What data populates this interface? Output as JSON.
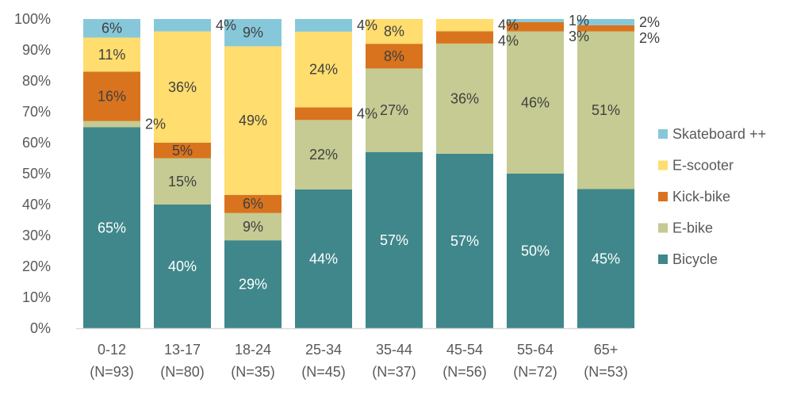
{
  "chart_data": {
    "type": "bar",
    "stacked": true,
    "percent_stacked": true,
    "title": "",
    "xlabel": "",
    "ylabel": "",
    "ylim": [
      0,
      100
    ],
    "y_ticks": [
      "0%",
      "10%",
      "20%",
      "30%",
      "40%",
      "50%",
      "60%",
      "70%",
      "80%",
      "90%",
      "100%"
    ],
    "grid": false,
    "legend_position": "right",
    "categories": [
      {
        "label": "0-12",
        "n": "(N=93)"
      },
      {
        "label": "13-17",
        "n": "(N=80)"
      },
      {
        "label": "18-24",
        "n": "(N=35)"
      },
      {
        "label": "25-34",
        "n": "(N=45)"
      },
      {
        "label": "35-44",
        "n": "(N=37)"
      },
      {
        "label": "45-54",
        "n": "(N=56)"
      },
      {
        "label": "55-64",
        "n": "(N=72)"
      },
      {
        "label": "65+",
        "n": "(N=53)"
      }
    ],
    "series": [
      {
        "name": "Bicycle",
        "color": "#3F878B",
        "label_color": "#FFFFFF",
        "values": [
          65,
          40,
          29,
          44,
          57,
          57,
          50,
          45
        ]
      },
      {
        "name": "E-bike",
        "color": "#C5CB92",
        "label_color": "#404040",
        "values": [
          2,
          15,
          9,
          22,
          27,
          36,
          46,
          51
        ]
      },
      {
        "name": "Kick-bike",
        "color": "#D9731E",
        "label_color": "#404040",
        "values": [
          16,
          5,
          6,
          4,
          8,
          4,
          3,
          2
        ]
      },
      {
        "name": "E-scooter",
        "color": "#FFDD6E",
        "label_color": "#404040",
        "values": [
          11,
          36,
          49,
          24,
          8,
          4,
          0,
          0
        ]
      },
      {
        "name": "Skateboard ++",
        "color": "#86C8DA",
        "label_color": "#404040",
        "values": [
          6,
          4,
          9,
          4,
          0,
          0,
          1,
          2
        ]
      }
    ],
    "outside_labels": [
      {
        "category": "0-12",
        "series": "E-bike",
        "text": "2%"
      },
      {
        "category": "55-64",
        "series": "Kick-bike",
        "text": "3%"
      },
      {
        "category": "55-64",
        "series": "Skateboard ++",
        "text": "1%"
      },
      {
        "category": "65+",
        "series": "Kick-bike",
        "text": "2%"
      },
      {
        "category": "65+",
        "series": "Skateboard ++",
        "text": "2%"
      }
    ]
  }
}
